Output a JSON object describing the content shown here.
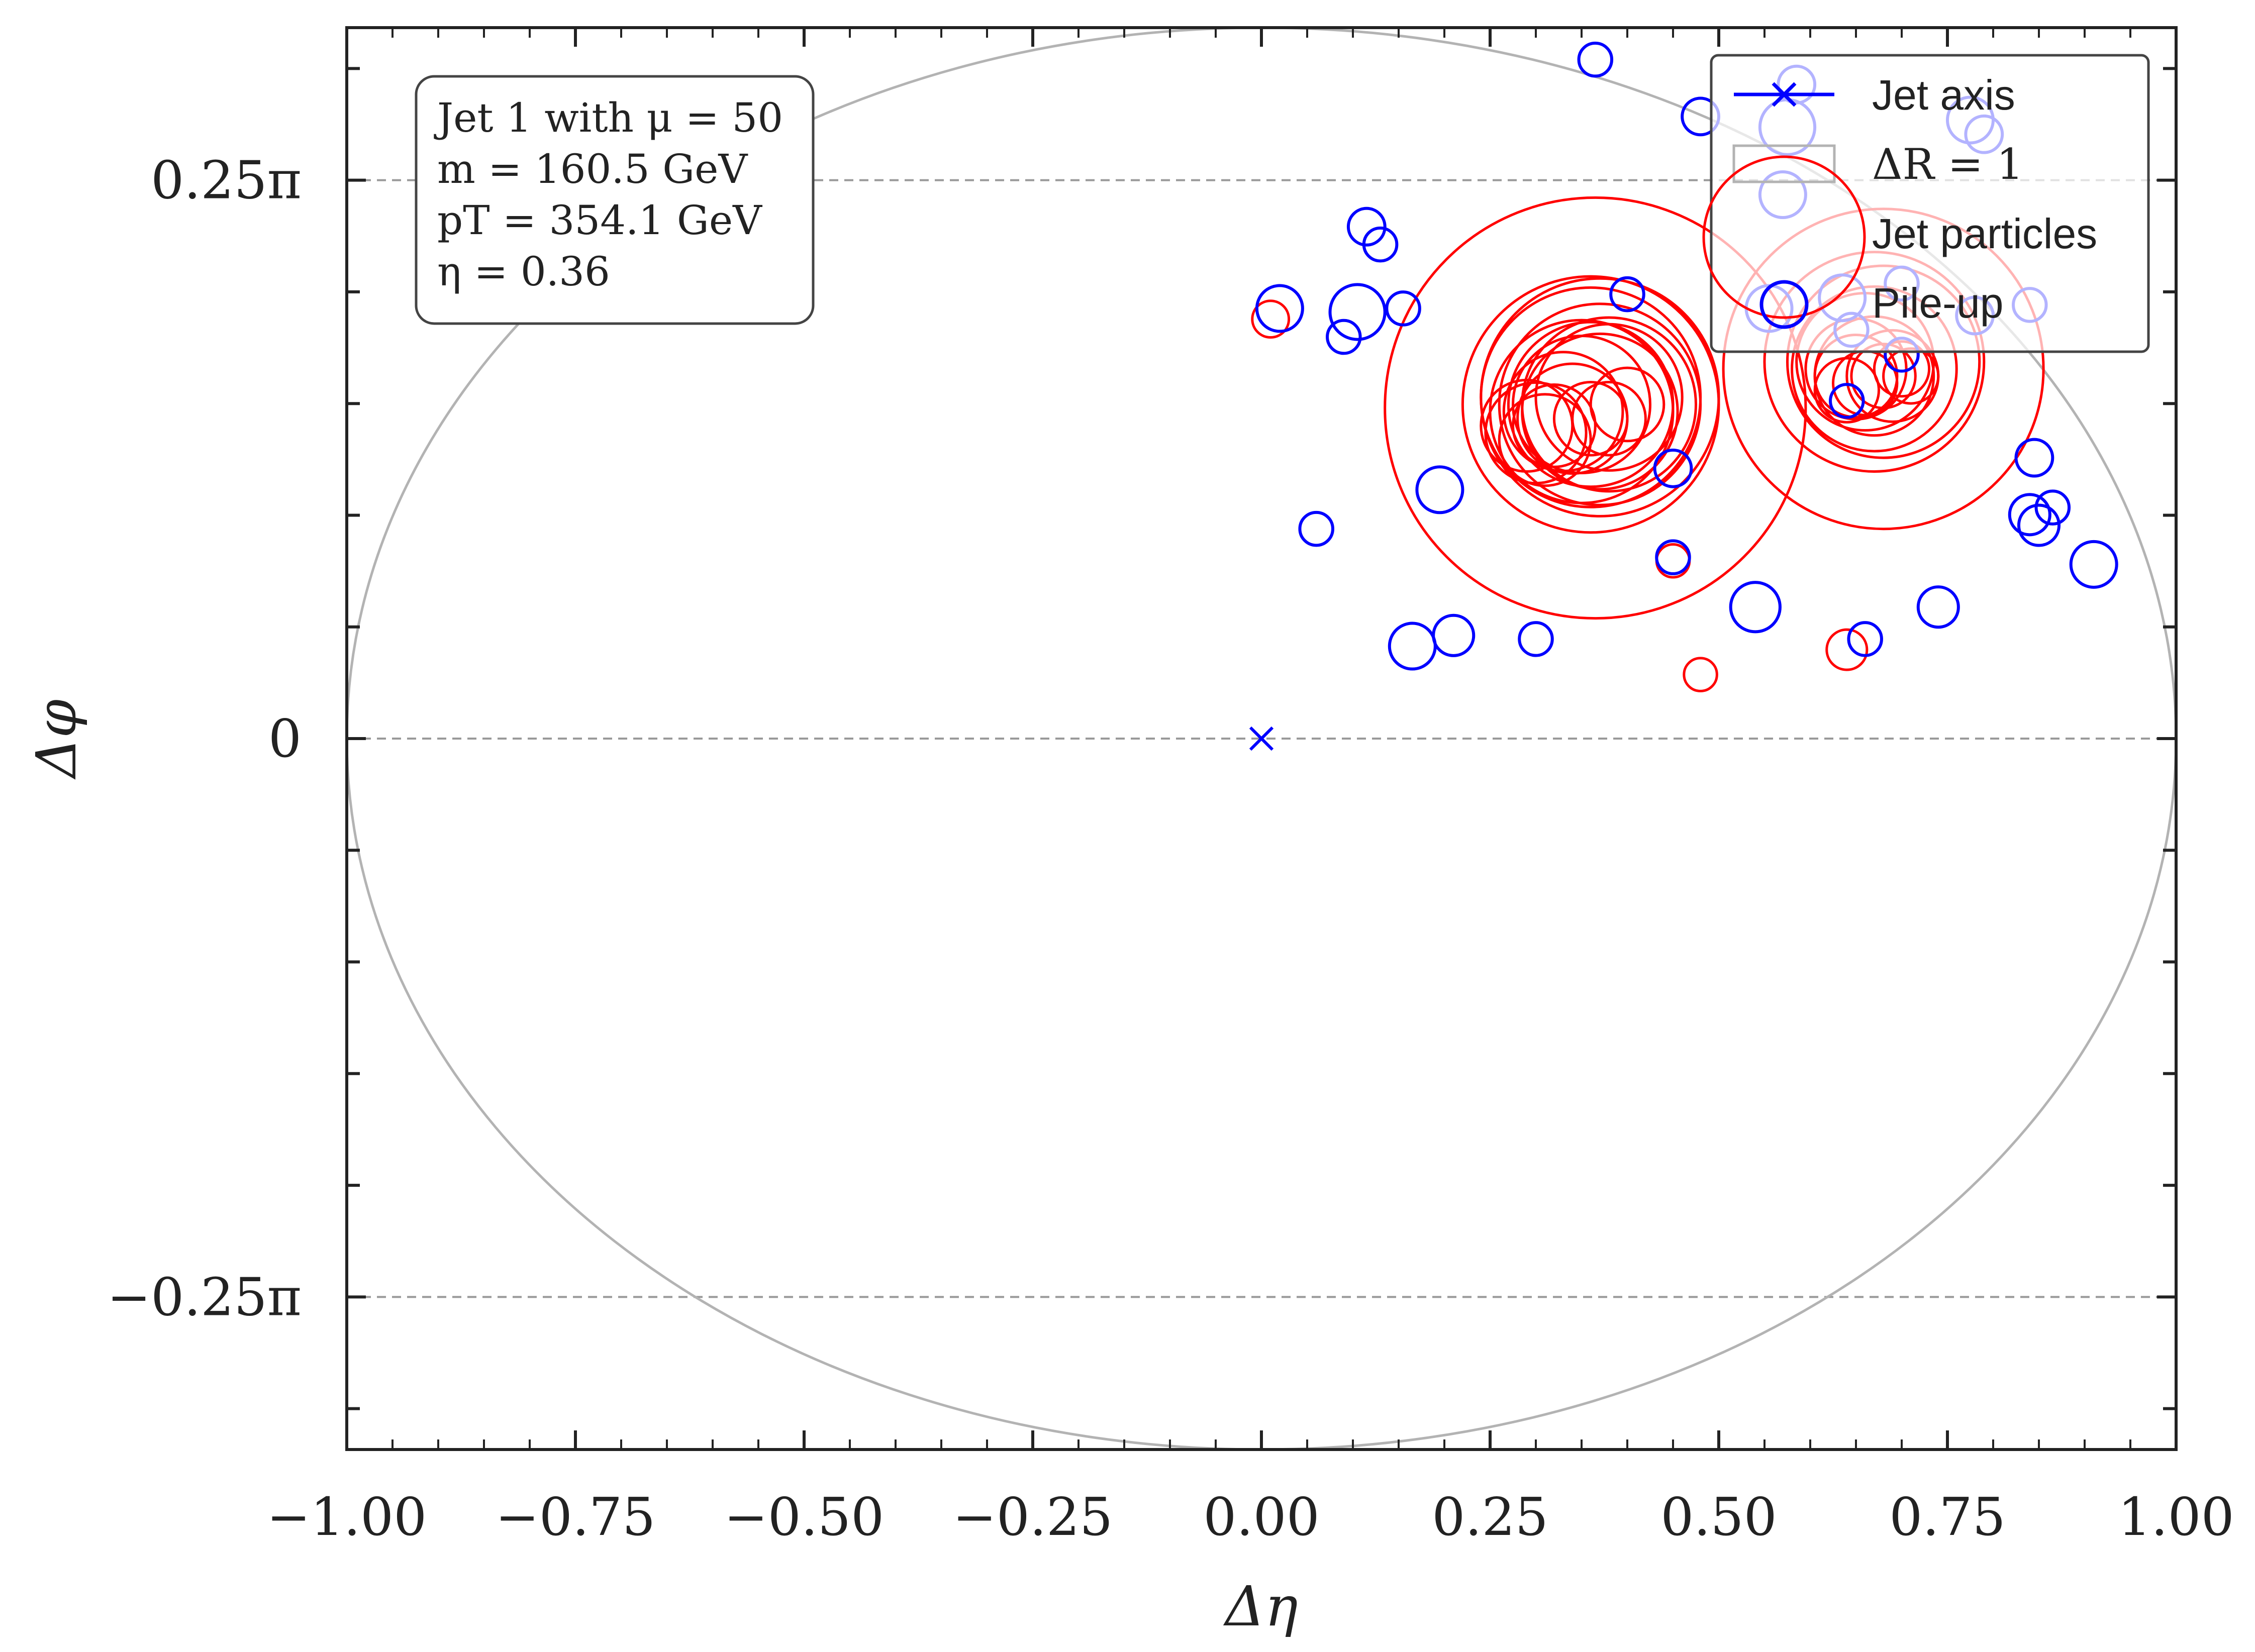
{
  "chart_data": {
    "type": "scatter",
    "xlabel": "Δη",
    "ylabel": "Δφ",
    "xlim": [
      -1.0,
      1.0
    ],
    "ylim": [
      -1.0,
      1.0
    ],
    "x_ticks": [
      -1.0,
      -0.75,
      -0.5,
      -0.25,
      0.0,
      0.25,
      0.5,
      0.75,
      1.0
    ],
    "x_tick_labels": [
      "−1.00",
      "−0.75",
      "−0.50",
      "−0.25",
      "0.00",
      "0.25",
      "0.50",
      "0.75",
      "1.00"
    ],
    "y_ticks": [
      0.7854,
      0.0,
      -0.7854
    ],
    "y_tick_labels": [
      "0.25π",
      "0",
      "−0.25π"
    ],
    "y_gridlines": [
      0.7854,
      0.0,
      -0.7854
    ],
    "info_box": {
      "line1": "Jet 1 with μ = 50",
      "line2": "m = 160.5 GeV",
      "line3": "pT = 354.1 GeV",
      "line4": "η = 0.36"
    },
    "legend": {
      "position": "top-right",
      "entries": [
        "Jet axis",
        "ΔR = 1",
        "Jet particles",
        "Pile-up"
      ]
    },
    "colors": {
      "jet": "#ff0000",
      "pileup": "#0000ff",
      "axis_marker": "#0000ff",
      "circle": "#b3b3b3",
      "grid": "#999999"
    },
    "jet_axis": {
      "x": 0.0,
      "y": 0.0
    },
    "delta_r_circle": {
      "cx": 0.0,
      "cy": 0.0,
      "r": 1.0
    },
    "jet_particles": [
      {
        "x": 0.365,
        "y": 0.465,
        "size": 0.23
      },
      {
        "x": 0.36,
        "y": 0.47,
        "size": 0.14
      },
      {
        "x": 0.37,
        "y": 0.48,
        "size": 0.13
      },
      {
        "x": 0.36,
        "y": 0.48,
        "size": 0.12
      },
      {
        "x": 0.37,
        "y": 0.47,
        "size": 0.11
      },
      {
        "x": 0.35,
        "y": 0.46,
        "size": 0.1
      },
      {
        "x": 0.38,
        "y": 0.47,
        "size": 0.095
      },
      {
        "x": 0.36,
        "y": 0.47,
        "size": 0.09
      },
      {
        "x": 0.37,
        "y": 0.46,
        "size": 0.085
      },
      {
        "x": 0.38,
        "y": 0.48,
        "size": 0.08
      },
      {
        "x": 0.35,
        "y": 0.47,
        "size": 0.075
      },
      {
        "x": 0.33,
        "y": 0.46,
        "size": 0.065
      },
      {
        "x": 0.34,
        "y": 0.45,
        "size": 0.06
      },
      {
        "x": 0.3,
        "y": 0.43,
        "size": 0.055
      },
      {
        "x": 0.29,
        "y": 0.44,
        "size": 0.05
      },
      {
        "x": 0.31,
        "y": 0.42,
        "size": 0.05
      },
      {
        "x": 0.32,
        "y": 0.44,
        "size": 0.045
      },
      {
        "x": 0.36,
        "y": 0.45,
        "size": 0.04
      },
      {
        "x": 0.4,
        "y": 0.47,
        "size": 0.04
      },
      {
        "x": 0.38,
        "y": 0.45,
        "size": 0.04
      },
      {
        "x": 0.68,
        "y": 0.52,
        "size": 0.175
      },
      {
        "x": 0.67,
        "y": 0.53,
        "size": 0.12
      },
      {
        "x": 0.68,
        "y": 0.53,
        "size": 0.105
      },
      {
        "x": 0.67,
        "y": 0.52,
        "size": 0.09
      },
      {
        "x": 0.66,
        "y": 0.53,
        "size": 0.075
      },
      {
        "x": 0.67,
        "y": 0.51,
        "size": 0.065
      },
      {
        "x": 0.65,
        "y": 0.52,
        "size": 0.055
      },
      {
        "x": 0.69,
        "y": 0.51,
        "size": 0.05
      },
      {
        "x": 0.65,
        "y": 0.51,
        "size": 0.045
      },
      {
        "x": 0.64,
        "y": 0.49,
        "size": 0.035
      },
      {
        "x": 0.66,
        "y": 0.5,
        "size": 0.035
      },
      {
        "x": 0.68,
        "y": 0.51,
        "size": 0.035
      },
      {
        "x": 0.7,
        "y": 0.52,
        "size": 0.03
      },
      {
        "x": 0.71,
        "y": 0.51,
        "size": 0.03
      },
      {
        "x": 0.01,
        "y": 0.59,
        "size": 0.02
      },
      {
        "x": 0.45,
        "y": 0.25,
        "size": 0.018
      },
      {
        "x": 0.48,
        "y": 0.09,
        "size": 0.018
      },
      {
        "x": 0.64,
        "y": 0.125,
        "size": 0.022
      }
    ],
    "pileup": [
      {
        "x": 0.365,
        "y": 0.955,
        "size": 0.018
      },
      {
        "x": 0.48,
        "y": 0.875,
        "size": 0.02
      },
      {
        "x": 0.585,
        "y": 0.92,
        "size": 0.02
      },
      {
        "x": 0.575,
        "y": 0.86,
        "size": 0.03
      },
      {
        "x": 0.775,
        "y": 0.87,
        "size": 0.025
      },
      {
        "x": 0.79,
        "y": 0.85,
        "size": 0.02
      },
      {
        "x": 0.57,
        "y": 0.765,
        "size": 0.025
      },
      {
        "x": 0.555,
        "y": 0.605,
        "size": 0.025
      },
      {
        "x": 0.635,
        "y": 0.62,
        "size": 0.025
      },
      {
        "x": 0.645,
        "y": 0.575,
        "size": 0.018
      },
      {
        "x": 0.7,
        "y": 0.64,
        "size": 0.018
      },
      {
        "x": 0.78,
        "y": 0.595,
        "size": 0.02
      },
      {
        "x": 0.84,
        "y": 0.61,
        "size": 0.018
      },
      {
        "x": 0.115,
        "y": 0.72,
        "size": 0.02
      },
      {
        "x": 0.13,
        "y": 0.695,
        "size": 0.018
      },
      {
        "x": 0.02,
        "y": 0.605,
        "size": 0.025
      },
      {
        "x": 0.105,
        "y": 0.6,
        "size": 0.03
      },
      {
        "x": 0.155,
        "y": 0.605,
        "size": 0.018
      },
      {
        "x": 0.09,
        "y": 0.565,
        "size": 0.018
      },
      {
        "x": 0.4,
        "y": 0.625,
        "size": 0.018
      },
      {
        "x": 0.64,
        "y": 0.475,
        "size": 0.018
      },
      {
        "x": 0.7,
        "y": 0.54,
        "size": 0.018
      },
      {
        "x": 0.45,
        "y": 0.38,
        "size": 0.02
      },
      {
        "x": 0.195,
        "y": 0.35,
        "size": 0.025
      },
      {
        "x": 0.06,
        "y": 0.295,
        "size": 0.018
      },
      {
        "x": 0.45,
        "y": 0.255,
        "size": 0.018
      },
      {
        "x": 0.54,
        "y": 0.185,
        "size": 0.027
      },
      {
        "x": 0.165,
        "y": 0.13,
        "size": 0.025
      },
      {
        "x": 0.21,
        "y": 0.145,
        "size": 0.022
      },
      {
        "x": 0.3,
        "y": 0.14,
        "size": 0.018
      },
      {
        "x": 0.66,
        "y": 0.14,
        "size": 0.018
      },
      {
        "x": 0.74,
        "y": 0.185,
        "size": 0.022
      },
      {
        "x": 0.845,
        "y": 0.395,
        "size": 0.02
      },
      {
        "x": 0.84,
        "y": 0.315,
        "size": 0.022
      },
      {
        "x": 0.85,
        "y": 0.3,
        "size": 0.022
      },
      {
        "x": 0.865,
        "y": 0.325,
        "size": 0.018
      },
      {
        "x": 0.91,
        "y": 0.245,
        "size": 0.025
      }
    ]
  }
}
